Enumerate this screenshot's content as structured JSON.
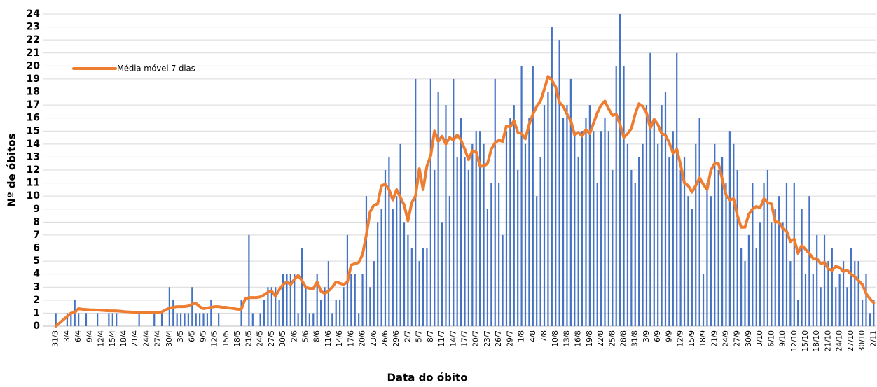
{
  "chart_data": {
    "type": "bar",
    "x_label": "Data do óbito",
    "y_label": "Nº de óbitos",
    "ylim": [
      0,
      24
    ],
    "yticks": [
      0,
      1,
      2,
      3,
      4,
      5,
      6,
      7,
      8,
      9,
      10,
      11,
      12,
      13,
      14,
      15,
      16,
      17,
      18,
      19,
      20,
      21,
      22,
      23,
      24
    ],
    "grid": true,
    "legend": "upper left",
    "categories": [
      "31/3",
      null,
      null,
      "3/4",
      null,
      null,
      "6/4",
      null,
      null,
      "9/4",
      null,
      null,
      "12/4",
      null,
      null,
      "15/4",
      null,
      null,
      "18/4",
      null,
      null,
      "21/4",
      null,
      null,
      "24/4",
      null,
      null,
      "27/4",
      null,
      null,
      "30/4",
      null,
      null,
      "3/5",
      null,
      null,
      "6/5",
      null,
      null,
      "9/5",
      null,
      null,
      "12/5",
      null,
      null,
      "15/5",
      null,
      null,
      "18/5",
      null,
      null,
      "21/5",
      null,
      null,
      "24/5",
      null,
      null,
      "27/5",
      null,
      null,
      "30/5",
      null,
      null,
      "2/6",
      null,
      null,
      "5/6",
      null,
      null,
      "8/6",
      null,
      null,
      "11/6",
      null,
      null,
      "14/6",
      null,
      null,
      "17/6",
      null,
      null,
      "20/6",
      null,
      null,
      "23/6",
      null,
      null,
      "26/6",
      null,
      null,
      "29/6",
      null,
      null,
      "2/7",
      null,
      null,
      "5/7",
      null,
      null,
      "8/7",
      null,
      null,
      "11/7",
      null,
      null,
      "14/7",
      null,
      null,
      "17/7",
      null,
      null,
      "20/7",
      null,
      null,
      "23/7",
      null,
      null,
      "26/7",
      null,
      null,
      "29/7",
      null,
      null,
      "1/8",
      null,
      null,
      "4/8",
      null,
      null,
      "7/8",
      null,
      null,
      "10/8",
      null,
      null,
      "13/8",
      null,
      null,
      "16/8",
      null,
      null,
      "19/8",
      null,
      null,
      "22/8",
      null,
      null,
      "25/8",
      null,
      null,
      "28/8",
      null,
      null,
      "31/8",
      null,
      null,
      "3/9",
      null,
      null,
      "6/9",
      null,
      null,
      "9/9",
      null,
      null,
      "12/9",
      null,
      null,
      "15/9",
      null,
      null,
      "18/9",
      null,
      null,
      "21/9",
      null,
      null,
      "24/9",
      null,
      null,
      "27/9",
      null,
      null,
      "30/9",
      null,
      null,
      "3/10",
      null,
      null,
      "6/10",
      null,
      null,
      "9/10",
      null,
      null,
      "12/10",
      null,
      null,
      "15/10",
      null,
      null,
      "18/10",
      null,
      null,
      "21/10",
      null,
      null,
      "24/10",
      null,
      null,
      "27/10",
      null,
      null,
      "30/10",
      null,
      null,
      "2/11"
    ],
    "series": [
      {
        "type": "bar",
        "color": "#4472c4",
        "values": [
          1,
          0,
          0,
          1,
          1,
          2,
          1,
          0,
          1,
          0,
          0,
          1,
          0,
          0,
          1,
          1,
          1,
          0,
          0,
          0,
          0,
          0,
          1,
          0,
          0,
          0,
          1,
          0,
          1,
          0,
          3,
          2,
          1,
          1,
          1,
          1,
          3,
          1,
          1,
          1,
          1,
          2,
          0,
          1,
          0,
          0,
          0,
          0,
          0,
          2,
          0,
          7,
          1,
          0,
          1,
          2,
          3,
          3,
          3,
          2,
          4,
          4,
          4,
          4,
          1,
          6,
          3,
          1,
          1,
          4,
          2,
          3,
          5,
          1,
          2,
          2,
          3,
          7,
          4,
          4,
          1,
          4,
          10,
          3,
          5,
          8,
          9,
          12,
          13,
          9,
          10,
          14,
          8,
          7,
          6,
          19,
          5,
          6,
          6,
          19,
          12,
          18,
          8,
          17,
          10,
          19,
          13,
          16,
          13,
          12,
          14,
          15,
          15,
          14,
          9,
          11,
          19,
          11,
          7,
          15,
          16,
          17,
          12,
          20,
          14,
          16,
          20,
          10,
          13,
          17,
          18,
          23,
          18,
          22,
          16,
          17,
          19,
          15,
          13,
          15,
          16,
          17,
          15,
          11,
          15,
          16,
          15,
          12,
          20,
          24,
          20,
          14,
          12,
          11,
          13,
          14,
          17,
          21,
          16,
          14,
          17,
          18,
          13,
          15,
          21,
          12,
          13,
          10,
          9,
          14,
          16,
          4,
          11,
          10,
          14,
          12,
          13,
          11,
          15,
          14,
          12,
          6,
          5,
          7,
          11,
          6,
          8,
          11,
          12,
          8,
          9,
          10,
          8,
          11,
          5,
          11,
          2,
          9,
          4,
          10,
          4,
          7,
          3,
          7,
          5,
          6,
          3,
          4,
          5,
          3,
          6,
          5,
          5,
          2,
          4,
          1,
          2
        ]
      },
      {
        "name": "Média móvel 7 dias",
        "type": "line",
        "color": "#ed7d31",
        "values": [
          0,
          0.25,
          0.5,
          0.75,
          1.0,
          1.05,
          1.35,
          1.3,
          1.28,
          1.26,
          1.25,
          1.24,
          1.22,
          1.2,
          1.18,
          1.18,
          1.17,
          1.15,
          1.12,
          1.1,
          1.08,
          1.05,
          1.03,
          1.02,
          1.02,
          1.02,
          1.02,
          1.02,
          1.1,
          1.25,
          1.4,
          1.45,
          1.5,
          1.5,
          1.5,
          1.55,
          1.7,
          1.75,
          1.5,
          1.35,
          1.4,
          1.45,
          1.5,
          1.5,
          1.45,
          1.45,
          1.4,
          1.35,
          1.3,
          1.3,
          2.1,
          2.2,
          2.2,
          2.2,
          2.25,
          2.4,
          2.6,
          2.7,
          2.3,
          2.8,
          3.2,
          3.4,
          3.2,
          3.6,
          3.9,
          3.5,
          3.0,
          2.9,
          2.9,
          3.4,
          2.7,
          2.5,
          2.7,
          3.0,
          3.4,
          3.3,
          3.2,
          3.4,
          4.7,
          4.8,
          4.9,
          5.5,
          7.0,
          8.8,
          9.3,
          9.4,
          10.8,
          10.9,
          10.5,
          9.7,
          10.5,
          9.9,
          9.3,
          8.1,
          9.5,
          10.0,
          12.1,
          10.5,
          12.3,
          13.1,
          15.0,
          14.2,
          14.6,
          14.0,
          14.5,
          14.3,
          14.7,
          14.3,
          13.6,
          12.8,
          13.5,
          13.4,
          12.3,
          12.3,
          12.5,
          13.6,
          14.1,
          14.3,
          14.2,
          15.4,
          15.3,
          15.8,
          14.9,
          14.8,
          14.4,
          15.5,
          16.3,
          16.9,
          17.3,
          18.2,
          19.2,
          18.9,
          18.4,
          17.2,
          16.9,
          16.3,
          15.8,
          14.7,
          14.9,
          14.6,
          15.1,
          14.8,
          15.6,
          16.4,
          17.0,
          17.3,
          16.7,
          16.2,
          16.3,
          15.5,
          14.5,
          14.8,
          15.2,
          16.3,
          17.1,
          16.9,
          16.4,
          15.2,
          15.9,
          15.5,
          14.8,
          14.7,
          14.1,
          13.3,
          13.6,
          12.4,
          11.0,
          10.8,
          10.3,
          10.8,
          11.4,
          10.9,
          10.5,
          12.0,
          12.5,
          12.5,
          11.3,
          10.1,
          9.7,
          9.8,
          8.5,
          7.6,
          7.6,
          8.6,
          9.0,
          9.2,
          9.1,
          9.8,
          9.5,
          9.4,
          8.0,
          8.0,
          7.5,
          7.3,
          6.5,
          6.7,
          5.6,
          6.2,
          5.9,
          5.6,
          5.2,
          5.2,
          4.8,
          4.9,
          4.4,
          4.3,
          4.6,
          4.5,
          4.2,
          4.3,
          4.0,
          3.8,
          3.5,
          3.2,
          2.5,
          2.1,
          1.8
        ]
      }
    ]
  }
}
